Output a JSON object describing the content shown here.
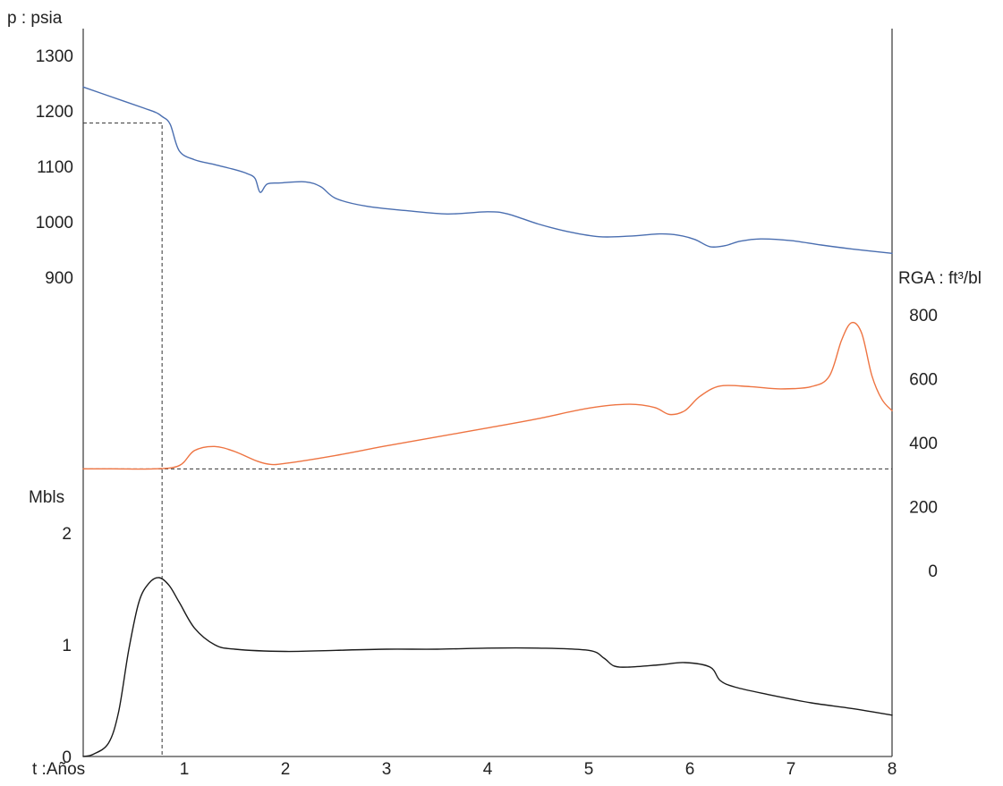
{
  "chart_data": {
    "type": "line",
    "x_axis": {
      "label": "t :Años",
      "ticks": [
        1,
        2,
        3,
        4,
        5,
        6,
        7,
        8
      ],
      "range": [
        0,
        8
      ]
    },
    "y_axes": {
      "pressure": {
        "label": "p : psia",
        "ticks": [
          900,
          1000,
          1100,
          1200,
          1300
        ],
        "side": "left"
      },
      "gor": {
        "label": "RGA : ft³/bl",
        "ticks": [
          0,
          200,
          400,
          600,
          800
        ],
        "side": "right"
      },
      "production": {
        "label": "Mbls",
        "ticks": [
          0,
          1,
          2
        ],
        "side": "left"
      }
    },
    "series": [
      {
        "axis": "pressure",
        "color": "#4a6eb0",
        "x": [
          0,
          0.3,
          0.6,
          0.72,
          0.78,
          0.86,
          0.95,
          1.1,
          1.3,
          1.5,
          1.62,
          1.7,
          1.75,
          1.82,
          1.95,
          2.2,
          2.35,
          2.5,
          2.8,
          3.2,
          3.6,
          4.0,
          4.2,
          4.5,
          4.8,
          5.1,
          5.4,
          5.7,
          5.88,
          6.05,
          6.2,
          6.35,
          6.5,
          6.7,
          7.0,
          7.3,
          7.6,
          8.0
        ],
        "values": [
          1243,
          1224,
          1205,
          1197,
          1190,
          1176,
          1128,
          1112,
          1103,
          1094,
          1087,
          1078,
          1053,
          1068,
          1070,
          1072,
          1063,
          1042,
          1028,
          1020,
          1014,
          1018,
          1014,
          996,
          982,
          973,
          974,
          978,
          976,
          968,
          955,
          957,
          965,
          969,
          966,
          958,
          951,
          943
        ]
      },
      {
        "axis": "gor",
        "color": "#ee7442",
        "x": [
          0,
          0.3,
          0.7,
          0.95,
          1.1,
          1.3,
          1.5,
          1.72,
          1.85,
          2.0,
          2.5,
          3.0,
          3.5,
          4.0,
          4.5,
          5.0,
          5.4,
          5.65,
          5.8,
          5.95,
          6.1,
          6.3,
          6.6,
          6.9,
          7.2,
          7.38,
          7.5,
          7.6,
          7.7,
          7.8,
          7.9,
          8.0
        ],
        "values": [
          318,
          318,
          318,
          328,
          375,
          388,
          372,
          342,
          332,
          335,
          360,
          390,
          418,
          446,
          475,
          508,
          520,
          510,
          488,
          500,
          545,
          577,
          575,
          568,
          575,
          608,
          720,
          775,
          742,
          610,
          535,
          500
        ]
      },
      {
        "axis": "production",
        "color": "#1a1a1a",
        "x": [
          0,
          0.1,
          0.25,
          0.35,
          0.45,
          0.55,
          0.65,
          0.75,
          0.85,
          0.95,
          1.1,
          1.3,
          1.5,
          2.0,
          2.5,
          3.0,
          3.5,
          4.0,
          4.5,
          5.0,
          5.15,
          5.25,
          5.4,
          5.7,
          5.95,
          6.2,
          6.3,
          6.45,
          6.8,
          7.2,
          7.6,
          8.0
        ],
        "values": [
          0,
          0.02,
          0.12,
          0.4,
          0.95,
          1.38,
          1.55,
          1.6,
          1.53,
          1.38,
          1.15,
          1.0,
          0.96,
          0.94,
          0.95,
          0.96,
          0.96,
          0.97,
          0.97,
          0.95,
          0.88,
          0.81,
          0.8,
          0.82,
          0.84,
          0.8,
          0.68,
          0.62,
          0.55,
          0.48,
          0.43,
          0.37
        ]
      }
    ],
    "reference_lines": [
      {
        "orientation": "horizontal",
        "axis": "pressure",
        "value": 1178,
        "x_from": 0,
        "x_to": 0.78
      },
      {
        "orientation": "vertical",
        "value": 0.78
      },
      {
        "orientation": "horizontal",
        "axis": "gor",
        "value": 318,
        "x_from": 0,
        "x_to": 8
      }
    ]
  }
}
